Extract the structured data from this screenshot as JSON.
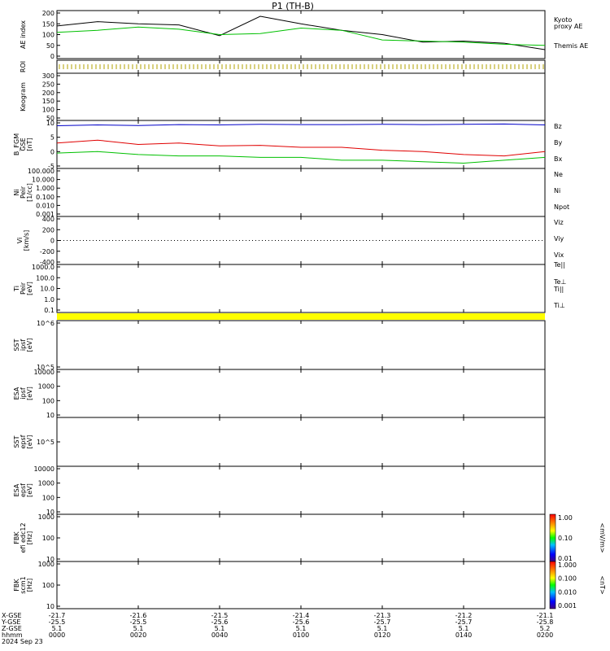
{
  "page": {
    "title": "P1  (TH-B)"
  },
  "colors": {
    "black": "#000000",
    "red": "#e00000",
    "green": "#00c000",
    "blue": "#0000c8",
    "yellow": "#ffff00",
    "kyoto": "#00c000"
  },
  "panels": {
    "ae": {
      "ylabel": "AE index",
      "ticks": [
        "200",
        "150",
        "100",
        "50",
        "0"
      ],
      "legend": {
        "kyoto": "Kyoto\nproxy AE",
        "themis": "Themis AE"
      }
    },
    "roi": {
      "ylabel": "ROI"
    },
    "keogram": {
      "ylabel": "Keogram",
      "ticks": [
        "300",
        "250",
        "200",
        "150",
        "100",
        "50"
      ]
    },
    "bfgm": {
      "ylabel": "B_FGM\nGSE\n[nT]",
      "ticks": [
        "10",
        "5",
        "0",
        "-5"
      ],
      "legend": [
        "Bz",
        "By",
        "Bx"
      ]
    },
    "ni": {
      "ylabel": "Ni\nPeir\n[1/cc]",
      "ticks": [
        "100.000",
        "10.000",
        "1.000",
        "0.100",
        "0.010",
        "0.001"
      ],
      "legend": [
        "Ne",
        "Ni",
        "Npot"
      ]
    },
    "vi": {
      "ylabel": "Vi\n[km/s]",
      "ticks": [
        "400",
        "200",
        "0",
        "-200",
        "-400"
      ],
      "legend": [
        "Viz",
        "Viy",
        "Vix"
      ]
    },
    "ti": {
      "ylabel": "Ti\nPeir\n[eV]",
      "ticks": [
        "1000.0",
        "100.0",
        "10.0",
        "1.0",
        "0.1"
      ],
      "legend": [
        "Te||",
        "Te⊥",
        "Ti||",
        "Ti⊥"
      ]
    },
    "sst_i": {
      "ylabel": "SST\nipsf\n[eV]",
      "ticks": [
        "10^6",
        "10^5"
      ]
    },
    "esa_i": {
      "ylabel": "ESA\nipsf\n[eV]",
      "ticks": [
        "10000",
        "1000",
        "100",
        "10"
      ]
    },
    "sst_e": {
      "ylabel": "SST\nepsf\n[eV]",
      "ticks": [
        "10^5"
      ]
    },
    "esa_e": {
      "ylabel": "ESA\nepsf\n[eV]",
      "ticks": [
        "10000",
        "1000",
        "100",
        "10"
      ]
    },
    "fbk_e": {
      "ylabel": "FBK\nefi edc12\n[Hz]",
      "ticks": [
        "1000",
        "100",
        "10"
      ]
    },
    "fbk_b": {
      "ylabel": "FBK\nscm1\n[Hz]",
      "ticks": [
        "1000",
        "100",
        "10"
      ]
    }
  },
  "colorbars": {
    "efield": {
      "label": "<mV/m>",
      "ticks": [
        "1.00",
        "0.10",
        "0.01"
      ]
    },
    "bfield": {
      "label": "<nT>",
      "ticks": [
        "1.000",
        "0.100",
        "0.010",
        "0.001"
      ]
    }
  },
  "xaxis": {
    "row_labels": [
      "X-GSE",
      "Y-GSE",
      "Z-GSE",
      "hhmm"
    ],
    "date": "2024 Sep 23",
    "columns": [
      {
        "x": "-21.7",
        "y": "-25.5",
        "z": "5.1",
        "t": "0000"
      },
      {
        "x": "-21.6",
        "y": "-25.5",
        "z": "5.1",
        "t": "0020"
      },
      {
        "x": "-21.5",
        "y": "-25.6",
        "z": "5.1",
        "t": "0040"
      },
      {
        "x": "-21.4",
        "y": "-25.6",
        "z": "5.1",
        "t": "0100"
      },
      {
        "x": "-21.3",
        "y": "-25.7",
        "z": "5.1",
        "t": "0120"
      },
      {
        "x": "-21.2",
        "y": "-25.7",
        "z": "5.1",
        "t": "0140"
      },
      {
        "x": "-21.1",
        "y": "-25.8",
        "z": "5.2",
        "t": "0200"
      }
    ]
  },
  "chart_data": {
    "type": "line",
    "title": "P1  (TH-B)",
    "x": [
      0,
      10,
      20,
      30,
      40,
      50,
      60,
      70,
      80,
      90,
      100,
      110,
      120
    ],
    "xlabel": "hhmm",
    "series": [
      {
        "name": "Themis AE",
        "panel": "ae",
        "values": [
          140,
          160,
          150,
          145,
          95,
          185,
          150,
          120,
          100,
          65,
          70,
          60,
          30
        ]
      },
      {
        "name": "Kyoto proxy AE",
        "panel": "ae",
        "values": [
          110,
          120,
          135,
          125,
          100,
          105,
          130,
          120,
          75,
          70,
          65,
          55,
          50
        ]
      },
      {
        "name": "Bz",
        "panel": "bfgm",
        "values": [
          9,
          9.3,
          9.1,
          9.4,
          9.3,
          9.5,
          9.4,
          9.4,
          9.5,
          9.4,
          9.5,
          9.6,
          9.3
        ]
      },
      {
        "name": "By",
        "panel": "bfgm",
        "values": [
          3,
          4,
          2.5,
          3,
          2,
          2.2,
          1.5,
          1.5,
          0.5,
          0,
          -1,
          -1.5,
          0
        ]
      },
      {
        "name": "Bx",
        "panel": "bfgm",
        "values": [
          -0.5,
          0,
          -1,
          -1.5,
          -1.5,
          -2,
          -2,
          -3,
          -3,
          -3.5,
          -4,
          -3,
          -2
        ]
      }
    ],
    "ylim": {
      "ae": [
        0,
        200
      ],
      "bfgm": [
        -5,
        10
      ]
    }
  }
}
